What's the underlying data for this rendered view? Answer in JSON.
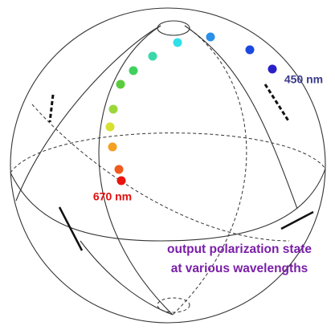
{
  "labels": {
    "red_wavelength": "670 nm",
    "blue_wavelength": "450 nm"
  },
  "caption": {
    "lines": [
      "output polarization state",
      "at various wavelengths"
    ]
  }
}
